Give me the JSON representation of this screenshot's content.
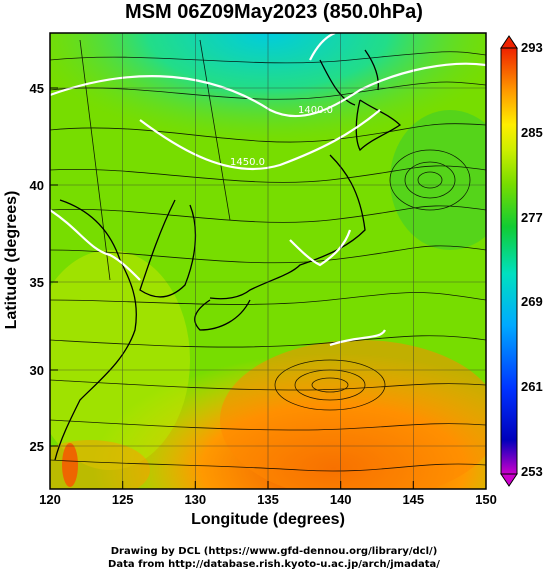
{
  "title": "MSM 06Z09May2023 (850.0hPa)",
  "xaxis": {
    "label": "Longitude (degrees)",
    "ticks": [
      "120",
      "125",
      "130",
      "135",
      "140",
      "145",
      "150"
    ],
    "range": [
      120,
      150
    ]
  },
  "yaxis": {
    "label": "Latitude  (degrees)",
    "ticks": [
      "25",
      "30",
      "35",
      "40",
      "45"
    ],
    "range": [
      22.5,
      48
    ]
  },
  "colorbar": {
    "labels": [
      "293",
      "285",
      "277",
      "269",
      "261",
      "253"
    ],
    "range": [
      253,
      293
    ],
    "colors": [
      "#cc00cc",
      "#0000cc",
      "#0044ff",
      "#00aaff",
      "#00e0d0",
      "#00d070",
      "#22cc22",
      "#88dd00",
      "#ccee00",
      "#ffee00",
      "#ffaa00",
      "#ff6600",
      "#ee2200"
    ]
  },
  "contour_labels": [
    "1400.0",
    "1450.0"
  ],
  "credits": {
    "line1": "Drawing by DCL (https://www.gfd-dennou.org/library/dcl/)",
    "line2": "Data from http://database.rish.kyoto-u.ac.jp/arch/jmadata/"
  }
}
